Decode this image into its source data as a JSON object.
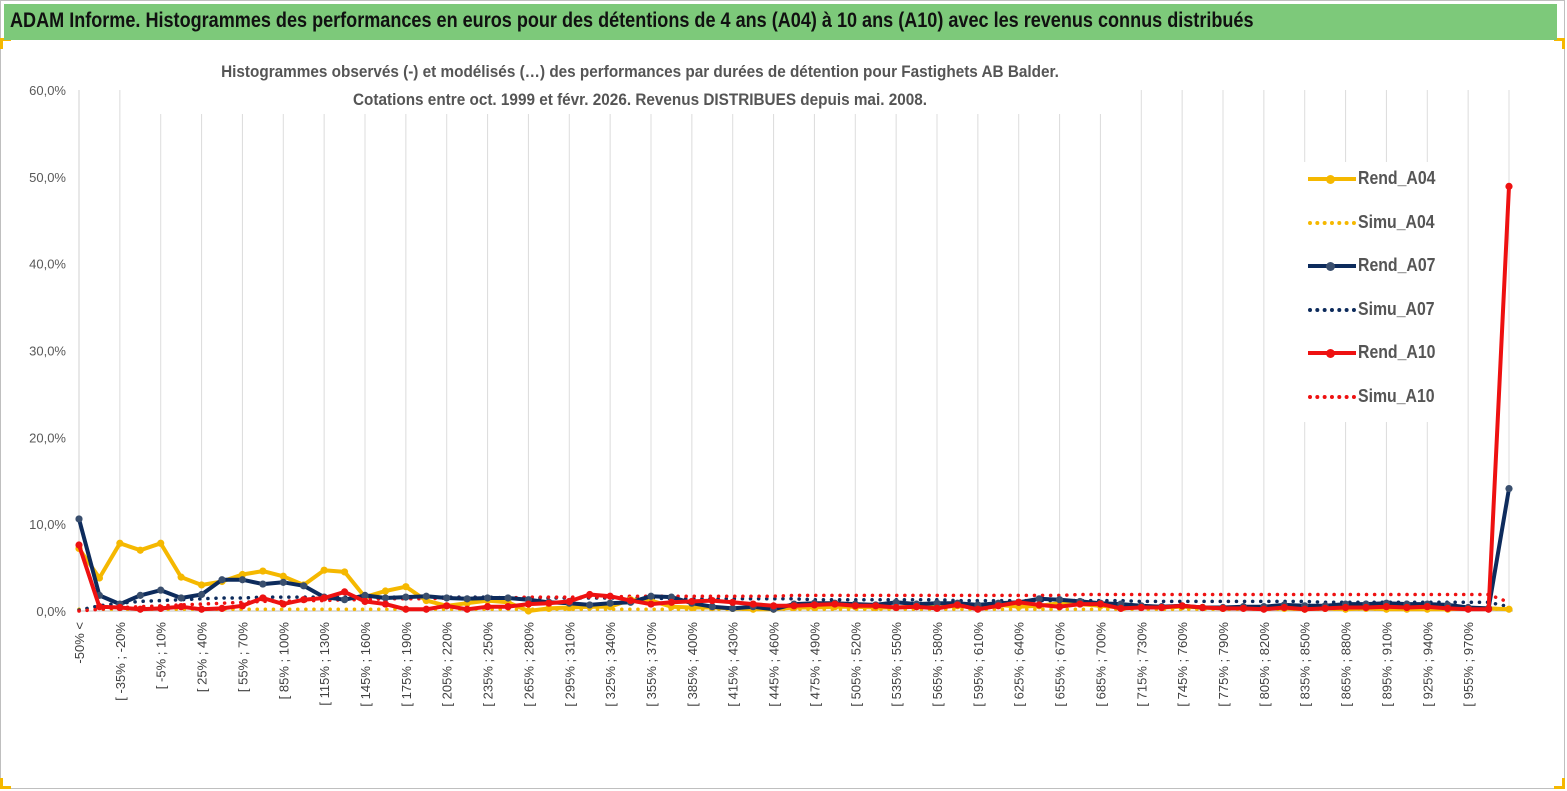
{
  "header": {
    "title": "ADAM Informe. Histogrammes des performances en euros pour des détentions de 4 ans (A04) à 10 ans (A10) avec les revenus connus distribués"
  },
  "colors": {
    "header_bg": "#7dc97a",
    "accent_corner": "#f5b800",
    "A04": "#f5b800",
    "A07": "#0d2b5c",
    "A10": "#ee1111"
  },
  "chart_data": {
    "type": "line",
    "title_lines": [
      "Histogrammes observés (-) et modélisés (…) des performances par durées de détention pour Fastighets AB Balder.",
      "Cotations entre oct. 1999 et févr. 2026. Revenus DISTRIBUES depuis mai. 2008."
    ],
    "ylim": [
      0,
      60
    ],
    "yticks": [
      "0,0%",
      "10,0%",
      "20,0%",
      "30,0%",
      "40,0%",
      "50,0%",
      "60,0%"
    ],
    "grid": "vertical",
    "legend_position": "right",
    "xtick_labels": [
      "-50% <",
      "[ -35% ; -20%",
      "[ -5% ; 10%",
      "[ 25% ; 40%",
      "[ 55% ; 70%",
      "[ 85% ; 100%",
      "[ 115% ; 130%",
      "[ 145% ; 160%",
      "[ 175% ; 190%",
      "[ 205% ; 220%",
      "[ 235% ; 250%",
      "[ 265% ; 280%",
      "[ 295% ; 310%",
      "[ 325% ; 340%",
      "[ 355% ; 370%",
      "[ 385% ; 400%",
      "[ 415% ; 430%",
      "[ 445% ; 460%",
      "[ 475% ; 490%",
      "[ 505% ; 520%",
      "[ 535% ; 550%",
      "[ 565% ; 580%",
      "[ 595% ; 610%",
      "[ 625% ; 640%",
      "[ 655% ; 670%",
      "[ 685% ; 700%",
      "[ 715% ; 730%",
      "[ 745% ; 760%",
      "[ 775% ; 790%",
      "[ 805% ; 820%",
      "[ 835% ; 850%",
      "[ 865% ; 880%",
      "[ 895% ; 910%",
      "[ 925% ; 940%",
      "[ 955% ; 970%"
    ],
    "series": [
      {
        "name": "Rend_A04",
        "style": "solid",
        "values": [
          7.2,
          3.8,
          7.8,
          7.0,
          7.8,
          3.9,
          3.0,
          3.4,
          4.2,
          4.6,
          4.0,
          3.0,
          4.7,
          4.5,
          1.6,
          2.3,
          2.8,
          1.2,
          0.6,
          0.9,
          1.2,
          1.0,
          0.0,
          0.3,
          0.4,
          0.5,
          0.5,
          1.3,
          1.2,
          0.5,
          0.4,
          0.4,
          0.3,
          0.2,
          0.2,
          0.4,
          0.4,
          0.5,
          0.5,
          0.4,
          0.4,
          0.5,
          0.4,
          0.6,
          0.5,
          0.7,
          0.5,
          0.6,
          0.9,
          0.8,
          0.6,
          0.4,
          0.5,
          0.4,
          0.5,
          0.4,
          0.3,
          0.4,
          0.3,
          0.3,
          0.2,
          0.3,
          0.2,
          0.3,
          0.2,
          0.2,
          0.2,
          0.2,
          0.3,
          0.3,
          0.2
        ]
      },
      {
        "name": "Simu_A04",
        "style": "dotted",
        "values": [
          0.2,
          0.2,
          0.2,
          0.2,
          0.2,
          0.2,
          0.2,
          0.2,
          0.2,
          0.2,
          0.2,
          0.2,
          0.2,
          0.2,
          0.2,
          0.2,
          0.2,
          0.2,
          0.2,
          0.2,
          0.2,
          0.2,
          0.2,
          0.2,
          0.2,
          0.2,
          0.2,
          0.2,
          0.2,
          0.2,
          0.2,
          0.2,
          0.2,
          0.2,
          0.2,
          0.2,
          0.2,
          0.2,
          0.2,
          0.2,
          0.2,
          0.2,
          0.2,
          0.2,
          0.2,
          0.2,
          0.2,
          0.2,
          0.2,
          0.2,
          0.2,
          0.2,
          0.2,
          0.2,
          0.2,
          0.2,
          0.2,
          0.2,
          0.2,
          0.2,
          0.2,
          0.2,
          0.2,
          0.2,
          0.2,
          0.2,
          0.2,
          0.2,
          0.2,
          0.2,
          0.2
        ]
      },
      {
        "name": "Rend_A07",
        "style": "solid",
        "values": [
          10.6,
          1.8,
          0.8,
          1.8,
          2.4,
          1.5,
          1.9,
          3.6,
          3.6,
          3.1,
          3.3,
          2.9,
          1.6,
          1.3,
          1.8,
          1.5,
          1.6,
          1.7,
          1.5,
          1.4,
          1.5,
          1.5,
          1.3,
          1.0,
          0.9,
          0.7,
          0.9,
          1.0,
          1.7,
          1.6,
          0.9,
          0.5,
          0.3,
          0.5,
          0.2,
          0.8,
          0.9,
          0.9,
          0.8,
          0.7,
          1.0,
          0.8,
          0.9,
          0.9,
          0.7,
          0.9,
          1.0,
          1.4,
          1.3,
          1.1,
          0.9,
          0.8,
          0.6,
          0.5,
          0.6,
          0.4,
          0.4,
          0.5,
          0.5,
          0.7,
          0.6,
          0.6,
          0.8,
          0.8,
          0.9,
          0.8,
          0.8,
          0.7,
          0.4,
          0.3,
          14.1
        ]
      },
      {
        "name": "Simu_A07",
        "style": "dotted",
        "values": [
          0.1,
          0.6,
          0.9,
          1.1,
          1.2,
          1.3,
          1.4,
          1.5,
          1.5,
          1.6,
          1.6,
          1.6,
          1.6,
          1.6,
          1.6,
          1.6,
          1.6,
          1.6,
          1.6,
          1.6,
          1.6,
          1.5,
          1.5,
          1.5,
          1.5,
          1.5,
          1.5,
          1.5,
          1.5,
          1.4,
          1.4,
          1.4,
          1.4,
          1.4,
          1.4,
          1.4,
          1.3,
          1.3,
          1.3,
          1.3,
          1.3,
          1.3,
          1.3,
          1.2,
          1.2,
          1.2,
          1.2,
          1.2,
          1.2,
          1.2,
          1.2,
          1.2,
          1.1,
          1.1,
          1.1,
          1.1,
          1.1,
          1.1,
          1.1,
          1.1,
          1.1,
          1.0,
          1.0,
          1.0,
          1.0,
          1.0,
          1.0,
          1.0,
          1.0,
          1.0,
          0.5
        ]
      },
      {
        "name": "Rend_A10",
        "style": "solid",
        "values": [
          7.6,
          0.5,
          0.4,
          0.2,
          0.3,
          0.5,
          0.2,
          0.3,
          0.6,
          1.5,
          0.8,
          1.3,
          1.5,
          2.2,
          1.1,
          0.8,
          0.2,
          0.2,
          0.6,
          0.2,
          0.5,
          0.5,
          0.8,
          0.9,
          1.1,
          1.9,
          1.7,
          1.2,
          0.8,
          1.0,
          1.1,
          1.2,
          1.0,
          0.8,
          0.6,
          0.6,
          0.7,
          0.8,
          0.6,
          0.6,
          0.4,
          0.5,
          0.3,
          0.7,
          0.2,
          0.6,
          1.0,
          0.7,
          0.5,
          0.8,
          0.8,
          0.3,
          0.4,
          0.4,
          0.6,
          0.4,
          0.3,
          0.3,
          0.2,
          0.4,
          0.2,
          0.3,
          0.4,
          0.4,
          0.5,
          0.4,
          0.5,
          0.3,
          0.2,
          0.2,
          48.9
        ]
      },
      {
        "name": "Simu_A10",
        "style": "dotted",
        "values": [
          0.0,
          0.2,
          0.4,
          0.5,
          0.6,
          0.7,
          0.8,
          0.9,
          1.0,
          1.1,
          1.1,
          1.2,
          1.2,
          1.3,
          1.3,
          1.4,
          1.4,
          1.4,
          1.5,
          1.5,
          1.5,
          1.5,
          1.6,
          1.6,
          1.6,
          1.6,
          1.6,
          1.7,
          1.7,
          1.7,
          1.7,
          1.7,
          1.7,
          1.7,
          1.7,
          1.8,
          1.8,
          1.8,
          1.8,
          1.8,
          1.8,
          1.8,
          1.8,
          1.8,
          1.8,
          1.8,
          1.8,
          1.8,
          1.8,
          1.9,
          1.9,
          1.9,
          1.9,
          1.9,
          1.9,
          1.9,
          1.9,
          1.9,
          1.9,
          1.9,
          1.9,
          1.9,
          1.9,
          1.9,
          1.9,
          1.9,
          1.9,
          1.9,
          1.9,
          1.9,
          1.0
        ]
      }
    ]
  }
}
